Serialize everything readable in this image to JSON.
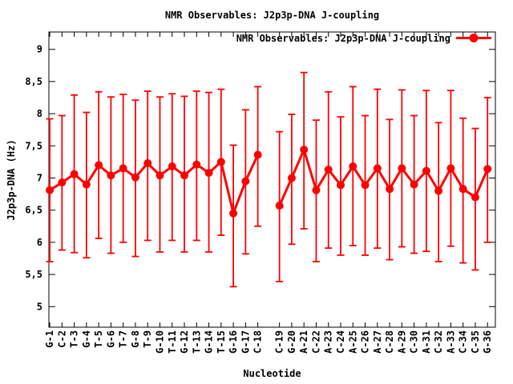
{
  "chart_data": {
    "type": "line",
    "title": "NMR Observables: J2p3p-DNA J-coupling",
    "legend": {
      "label": "NMR Observables: J2p3p-DNA J-coupling",
      "position": "top-right-inside"
    },
    "xlabel": "Nucleotide",
    "ylabel": "J2p3p-DNA (Hz)",
    "ylim": [
      4.68,
      9.27
    ],
    "yticks": [
      {
        "v": 5,
        "label": "5"
      },
      {
        "v": 5.5,
        "label": "5,5"
      },
      {
        "v": 6,
        "label": "6"
      },
      {
        "v": 6.5,
        "label": "6,5"
      },
      {
        "v": 7,
        "label": "7"
      },
      {
        "v": 7.5,
        "label": "7,5"
      },
      {
        "v": 8,
        "label": "8"
      },
      {
        "v": 8.5,
        "label": "8,5"
      },
      {
        "v": 9,
        "label": "9"
      }
    ],
    "xlim_units": [
      0.93,
      37.41
    ],
    "strand_gap_after_index": 18,
    "strand_gap_extra_units": 0.77,
    "colors": {
      "series": "#ff0000",
      "axis": "#000000",
      "background": "#ffffff"
    },
    "points": [
      {
        "label": "G-1",
        "value": 6.81,
        "lo": 5.7,
        "hi": 7.92
      },
      {
        "label": "C-2",
        "value": 6.93,
        "lo": 5.88,
        "hi": 7.97
      },
      {
        "label": "T-3",
        "value": 7.06,
        "lo": 5.84,
        "hi": 8.29
      },
      {
        "label": "G-4",
        "value": 6.9,
        "lo": 5.76,
        "hi": 8.02
      },
      {
        "label": "T-5",
        "value": 7.2,
        "lo": 6.06,
        "hi": 8.34
      },
      {
        "label": "G-6",
        "value": 7.04,
        "lo": 5.83,
        "hi": 8.26
      },
      {
        "label": "T-7",
        "value": 7.15,
        "lo": 6.0,
        "hi": 8.3
      },
      {
        "label": "G-8",
        "value": 7.01,
        "lo": 5.78,
        "hi": 8.21
      },
      {
        "label": "T-9",
        "value": 7.23,
        "lo": 6.03,
        "hi": 8.35
      },
      {
        "label": "G-10",
        "value": 7.04,
        "lo": 5.85,
        "hi": 8.26
      },
      {
        "label": "T-11",
        "value": 7.18,
        "lo": 6.03,
        "hi": 8.31
      },
      {
        "label": "G-12",
        "value": 7.04,
        "lo": 5.85,
        "hi": 8.27
      },
      {
        "label": "T-13",
        "value": 7.21,
        "lo": 6.03,
        "hi": 8.35
      },
      {
        "label": "G-14",
        "value": 7.08,
        "lo": 5.85,
        "hi": 8.33
      },
      {
        "label": "T-15",
        "value": 7.25,
        "lo": 6.11,
        "hi": 8.38
      },
      {
        "label": "G-16",
        "value": 6.45,
        "lo": 5.31,
        "hi": 7.51
      },
      {
        "label": "G-17",
        "value": 6.95,
        "lo": 5.82,
        "hi": 8.06
      },
      {
        "label": "C-18",
        "value": 7.36,
        "lo": 6.25,
        "hi": 8.42
      },
      {
        "label": "C-19",
        "value": 6.57,
        "lo": 5.39,
        "hi": 7.72
      },
      {
        "label": "G-20",
        "value": 7.0,
        "lo": 5.97,
        "hi": 7.99
      },
      {
        "label": "A-21",
        "value": 7.44,
        "lo": 6.21,
        "hi": 8.64
      },
      {
        "label": "C-22",
        "value": 6.81,
        "lo": 5.7,
        "hi": 7.9
      },
      {
        "label": "A-23",
        "value": 7.13,
        "lo": 5.91,
        "hi": 8.34
      },
      {
        "label": "C-24",
        "value": 6.89,
        "lo": 5.8,
        "hi": 7.95
      },
      {
        "label": "A-25",
        "value": 7.18,
        "lo": 5.95,
        "hi": 8.42
      },
      {
        "label": "C-26",
        "value": 6.89,
        "lo": 5.8,
        "hi": 7.97
      },
      {
        "label": "A-27",
        "value": 7.15,
        "lo": 5.91,
        "hi": 8.38
      },
      {
        "label": "C-28",
        "value": 6.83,
        "lo": 5.73,
        "hi": 7.91
      },
      {
        "label": "A-29",
        "value": 7.15,
        "lo": 5.93,
        "hi": 8.37
      },
      {
        "label": "C-30",
        "value": 6.9,
        "lo": 5.83,
        "hi": 7.97
      },
      {
        "label": "A-31",
        "value": 7.11,
        "lo": 5.86,
        "hi": 8.36
      },
      {
        "label": "C-32",
        "value": 6.8,
        "lo": 5.7,
        "hi": 7.86
      },
      {
        "label": "A-33",
        "value": 7.15,
        "lo": 5.94,
        "hi": 8.36
      },
      {
        "label": "C-34",
        "value": 6.83,
        "lo": 5.68,
        "hi": 7.93
      },
      {
        "label": "C-35",
        "value": 6.7,
        "lo": 5.57,
        "hi": 7.77
      },
      {
        "label": "G-36",
        "value": 7.14,
        "lo": 6.0,
        "hi": 8.25
      }
    ]
  }
}
